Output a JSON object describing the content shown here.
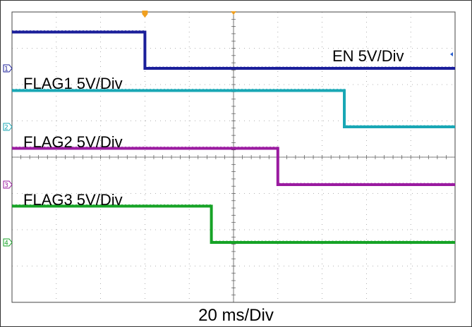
{
  "chart_data": {
    "type": "line",
    "x_divisions": 10,
    "y_divisions": 8,
    "x_unit_per_div": "20 ms",
    "grid": true,
    "xlabel": "20 ms/Div",
    "series": [
      {
        "name": "EN 5V/Div",
        "channel": "1",
        "color": "#1b1f9a",
        "high_level_div": 1.7,
        "low_level_div": 0.7,
        "edge_at_div": 3.0,
        "direction": "falling"
      },
      {
        "name": "FLAG1 5V/Div",
        "channel": "2",
        "color": "#19a7b5",
        "high_level_div": 1.0,
        "low_level_div": 0.0,
        "edge_at_div": 7.5,
        "direction": "falling"
      },
      {
        "name": "FLAG2 5V/Div",
        "channel": "3",
        "color": "#9a1ba0",
        "high_level_div": 1.0,
        "low_level_div": 0.0,
        "edge_at_div": 6.0,
        "direction": "falling"
      },
      {
        "name": "FLAG3 5V/Div",
        "channel": "4",
        "color": "#16a326",
        "high_level_div": 1.0,
        "low_level_div": 0.0,
        "edge_at_div": 4.5,
        "direction": "falling"
      }
    ]
  },
  "labels": {
    "en": "EN 5V/Div",
    "flag1": "FLAG1 5V/Div",
    "flag2": "FLAG2 5V/Div",
    "flag3": "FLAG3 5V/Div",
    "time_scale": "20 ms/Div"
  },
  "markers": {
    "channel_1": "1",
    "channel_2": "2",
    "channel_3": "3",
    "channel_4": "4"
  },
  "colors": {
    "grid": "#9a9a9a",
    "trigger_marker": "#f0a020"
  }
}
